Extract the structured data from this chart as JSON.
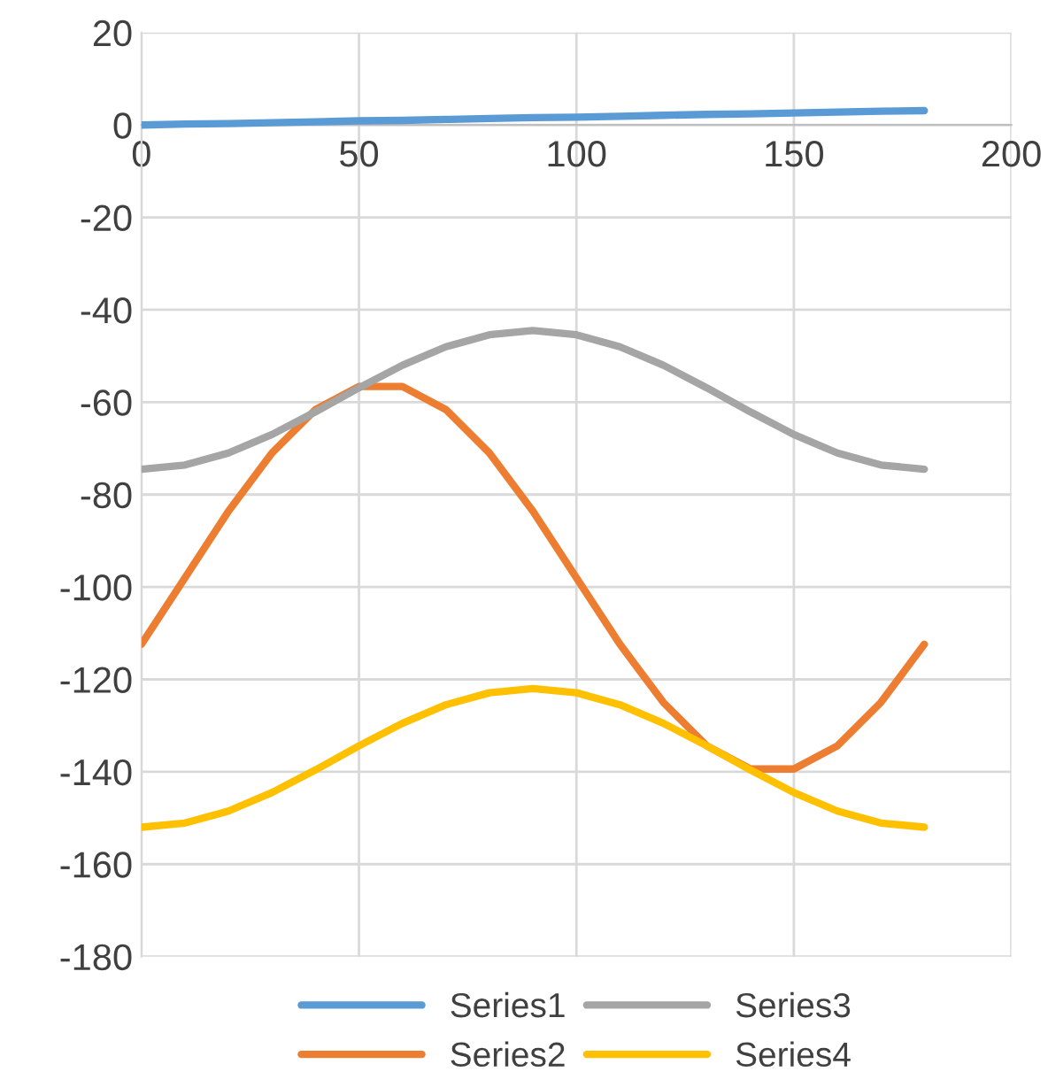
{
  "chart_data": {
    "type": "line",
    "x": [
      0,
      10,
      20,
      30,
      40,
      50,
      60,
      70,
      80,
      90,
      100,
      110,
      120,
      130,
      140,
      150,
      160,
      170,
      180
    ],
    "series": [
      {
        "name": "Series1",
        "color": "#5b9bd5",
        "values": [
          0,
          0.2,
          0.3,
          0.5,
          0.7,
          0.9,
          1,
          1.2,
          1.4,
          1.6,
          1.7,
          1.9,
          2.1,
          2.3,
          2.4,
          2.6,
          2.8,
          3,
          3.1
        ]
      },
      {
        "name": "Series2",
        "color": "#ed7d31",
        "values": [
          -112.4,
          -98,
          -83.6,
          -71,
          -61.6,
          -56.6,
          -56.6,
          -61.6,
          -71,
          -83.6,
          -98,
          -112.4,
          -125,
          -134.4,
          -139.4,
          -139.4,
          -134.4,
          -125,
          -112.4
        ]
      },
      {
        "name": "Series3",
        "color": "#a5a5a5",
        "values": [
          -74.5,
          -73.6,
          -71,
          -67,
          -62.1,
          -56.9,
          -52,
          -48,
          -45.4,
          -44.5,
          -45.4,
          -48,
          -52,
          -56.9,
          -62.1,
          -67,
          -71,
          -73.6,
          -74.5
        ]
      },
      {
        "name": "Series4",
        "color": "#ffc000",
        "values": [
          -152,
          -151.1,
          -148.5,
          -144.5,
          -139.6,
          -134.4,
          -129.5,
          -125.5,
          -122.9,
          -122,
          -122.9,
          -125.5,
          -129.5,
          -134.4,
          -139.6,
          -144.5,
          -148.5,
          -151.1,
          -152
        ]
      }
    ],
    "xlim": [
      0,
      200
    ],
    "xticks": [
      0,
      50,
      100,
      150,
      200
    ],
    "ylim": [
      -180,
      20
    ],
    "yticks": [
      -180,
      -160,
      -140,
      -120,
      -100,
      -80,
      -60,
      -40,
      -20,
      0,
      20
    ],
    "grid": true,
    "legend": "bottom",
    "marker": "none",
    "line_style": "solid"
  }
}
